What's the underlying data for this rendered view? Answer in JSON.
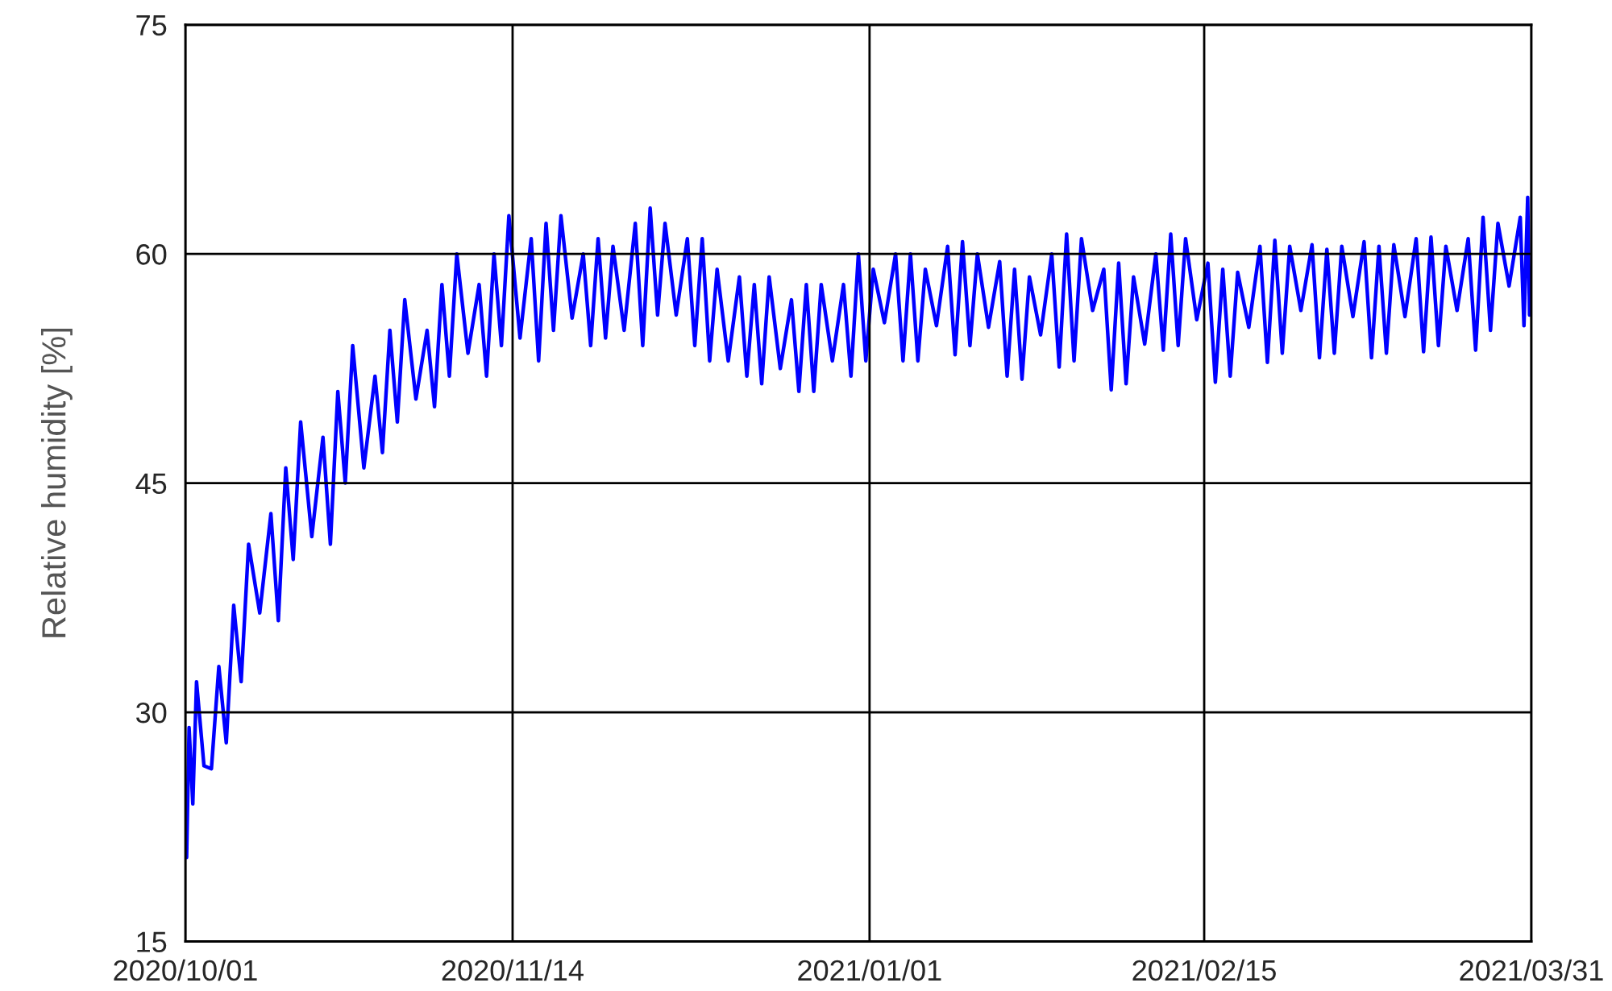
{
  "chart_data": {
    "type": "line",
    "ylabel": "Relative humidity [%]",
    "xlim": [
      "2020-10-01",
      "2021-03-31"
    ],
    "xticks": [
      {
        "value": "2020-10-01",
        "label": "2020/10/01"
      },
      {
        "value": "2020-11-14",
        "label": "2020/11/14"
      },
      {
        "value": "2021-01-01",
        "label": "2021/01/01"
      },
      {
        "value": "2021-02-15",
        "label": "2021/02/15"
      },
      {
        "value": "2021-03-31",
        "label": "2021/03/31"
      }
    ],
    "ylim": [
      15,
      75
    ],
    "yticks": [
      15,
      30,
      45,
      60,
      75
    ],
    "grid": true,
    "marker": "none",
    "line_style": "solid",
    "series": [
      {
        "color": "#0000ff",
        "x": [
          "2020-10-01T04:00",
          "2020-10-01T12:00",
          "2020-10-02T00:00",
          "2020-10-02T12:00",
          "2020-10-03T12:00",
          "2020-10-04T12:00",
          "2020-10-05T12:00",
          "2020-10-06T12:00",
          "2020-10-07T12:00",
          "2020-10-08T12:00",
          "2020-10-09T12:00",
          "2020-10-11T00:00",
          "2020-10-12T12:00",
          "2020-10-13T12:00",
          "2020-10-14T12:00",
          "2020-10-15T12:00",
          "2020-10-16T12:00",
          "2020-10-18T00:00",
          "2020-10-19T12:00",
          "2020-10-20T12:00",
          "2020-10-21T12:00",
          "2020-10-22T12:00",
          "2020-10-23T12:00",
          "2020-10-25T00:00",
          "2020-10-26T12:00",
          "2020-10-27T12:00",
          "2020-10-28T12:00",
          "2020-10-29T12:00",
          "2020-10-30T12:00",
          "2020-11-01T00:00",
          "2020-11-02T12:00",
          "2020-11-03T12:00",
          "2020-11-04T12:00",
          "2020-11-05T12:00",
          "2020-11-06T12:00",
          "2020-11-08T00:00",
          "2020-11-09T12:00",
          "2020-11-10T12:00",
          "2020-11-11T12:00",
          "2020-11-12T12:00",
          "2020-11-13T12:00",
          "2020-11-15T00:00",
          "2020-11-16T12:00",
          "2020-11-17T12:00",
          "2020-11-18T12:00",
          "2020-11-19T12:00",
          "2020-11-20T12:00",
          "2020-11-22T00:00",
          "2020-11-23T12:00",
          "2020-11-24T12:00",
          "2020-11-25T12:00",
          "2020-11-26T12:00",
          "2020-11-27T12:00",
          "2020-11-29T00:00",
          "2020-11-30T12:00",
          "2020-12-01T12:00",
          "2020-12-02T12:00",
          "2020-12-03T12:00",
          "2020-12-04T12:00",
          "2020-12-06T00:00",
          "2020-12-07T12:00",
          "2020-12-08T12:00",
          "2020-12-09T12:00",
          "2020-12-10T12:00",
          "2020-12-11T12:00",
          "2020-12-13T00:00",
          "2020-12-14T12:00",
          "2020-12-15T12:00",
          "2020-12-16T12:00",
          "2020-12-17T12:00",
          "2020-12-18T12:00",
          "2020-12-20T00:00",
          "2020-12-21T12:00",
          "2020-12-22T12:00",
          "2020-12-23T12:00",
          "2020-12-24T12:00",
          "2020-12-25T12:00",
          "2020-12-27T00:00",
          "2020-12-28T12:00",
          "2020-12-29T12:00",
          "2020-12-30T12:00",
          "2020-12-31T12:00",
          "2021-01-01T12:00",
          "2021-01-03T00:00",
          "2021-01-04T12:00",
          "2021-01-05T12:00",
          "2021-01-06T12:00",
          "2021-01-07T12:00",
          "2021-01-08T12:00",
          "2021-01-10T00:00",
          "2021-01-11T12:00",
          "2021-01-12T12:00",
          "2021-01-13T12:00",
          "2021-01-14T12:00",
          "2021-01-15T12:00",
          "2021-01-17T00:00",
          "2021-01-18T12:00",
          "2021-01-19T12:00",
          "2021-01-20T12:00",
          "2021-01-21T12:00",
          "2021-01-22T12:00",
          "2021-01-24T00:00",
          "2021-01-25T12:00",
          "2021-01-26T12:00",
          "2021-01-27T12:00",
          "2021-01-28T12:00",
          "2021-01-29T12:00",
          "2021-01-31T00:00",
          "2021-02-01T12:00",
          "2021-02-02T12:00",
          "2021-02-03T12:00",
          "2021-02-04T12:00",
          "2021-02-05T12:00",
          "2021-02-07T00:00",
          "2021-02-08T12:00",
          "2021-02-09T12:00",
          "2021-02-10T12:00",
          "2021-02-11T12:00",
          "2021-02-12T12:00",
          "2021-02-14T00:00",
          "2021-02-15T12:00",
          "2021-02-16T12:00",
          "2021-02-17T12:00",
          "2021-02-18T12:00",
          "2021-02-19T12:00",
          "2021-02-21T00:00",
          "2021-02-22T12:00",
          "2021-02-23T12:00",
          "2021-02-24T12:00",
          "2021-02-25T12:00",
          "2021-02-26T12:00",
          "2021-02-28T00:00",
          "2021-03-01T12:00",
          "2021-03-02T12:00",
          "2021-03-03T12:00",
          "2021-03-04T12:00",
          "2021-03-05T12:00",
          "2021-03-07T00:00",
          "2021-03-08T12:00",
          "2021-03-09T12:00",
          "2021-03-10T12:00",
          "2021-03-11T12:00",
          "2021-03-12T12:00",
          "2021-03-14T00:00",
          "2021-03-15T12:00",
          "2021-03-16T12:00",
          "2021-03-17T12:00",
          "2021-03-18T12:00",
          "2021-03-19T12:00",
          "2021-03-21T00:00",
          "2021-03-22T12:00",
          "2021-03-23T12:00",
          "2021-03-24T12:00",
          "2021-03-25T12:00",
          "2021-03-26T12:00",
          "2021-03-28T00:00",
          "2021-03-29T12:00",
          "2021-03-30T00:00",
          "2021-03-30T12:00",
          "2021-03-30T18:00",
          "2021-03-31T00:00"
        ],
        "values": [
          20.5,
          29,
          24,
          32,
          26.5,
          26.3,
          33,
          28,
          37,
          32,
          41,
          36.5,
          43,
          36,
          46,
          40,
          49,
          41.5,
          48,
          41,
          51,
          45,
          54,
          46,
          52,
          47,
          55,
          49,
          57,
          50.5,
          55,
          50,
          58,
          52,
          60,
          53.5,
          58,
          52,
          60,
          54,
          62.5,
          54.5,
          61,
          53,
          62,
          55,
          62.5,
          55.8,
          60,
          54,
          61,
          54.5,
          60.5,
          55,
          62,
          54,
          63,
          56,
          62,
          56,
          61,
          54,
          61,
          53,
          59,
          53,
          58.5,
          52,
          58,
          51.5,
          58.5,
          52.5,
          57,
          51,
          58,
          51,
          58,
          53,
          58,
          52,
          60,
          53,
          59,
          55.5,
          60,
          53,
          60,
          53,
          59,
          55.3,
          60.5,
          53.4,
          60.8,
          54,
          60,
          55.2,
          59.5,
          52,
          59,
          51.8,
          58.5,
          54.7,
          60,
          52.6,
          61.3,
          53,
          61,
          56.3,
          59,
          51.1,
          59.4,
          51.5,
          58.5,
          54.1,
          60,
          53.7,
          61.3,
          54,
          61,
          55.7,
          59.4,
          51.6,
          59,
          52,
          58.8,
          55.2,
          60.5,
          52.9,
          60.9,
          53.5,
          60.5,
          56.3,
          60.6,
          53.2,
          60.3,
          53.5,
          60.5,
          55.9,
          60.8,
          53.2,
          60.5,
          53.5,
          60.6,
          55.9,
          61,
          53.6,
          61.1,
          54,
          60.5,
          56.3,
          61,
          53.7,
          62.4,
          55,
          62,
          57.9,
          62.4,
          55.3,
          63.7,
          56,
          58
        ]
      }
    ]
  }
}
